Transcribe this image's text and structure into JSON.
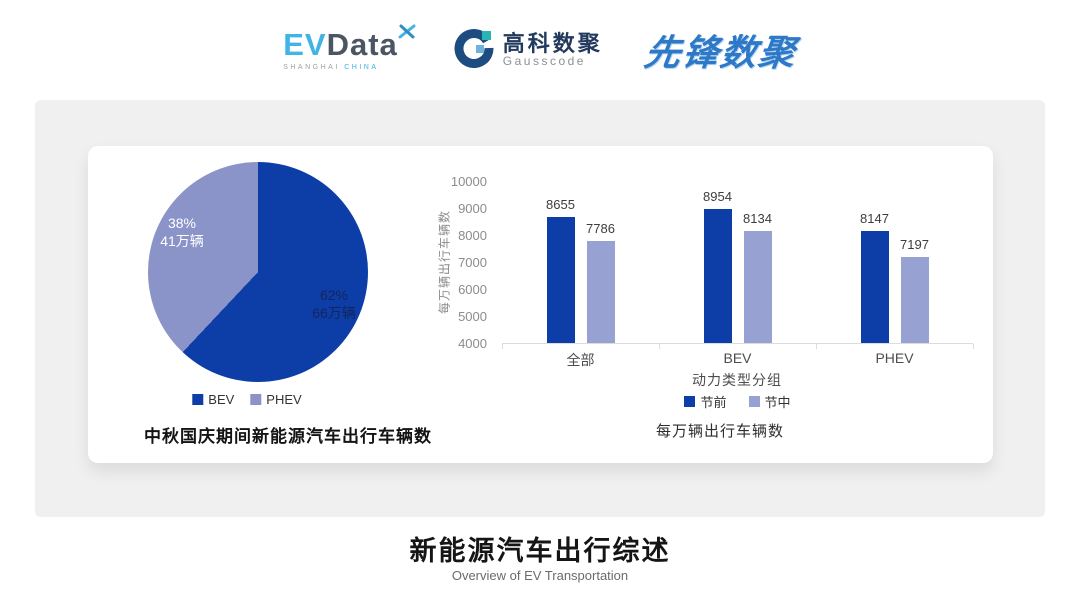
{
  "header": {
    "evdata": {
      "ev": "EV",
      "data": "Data",
      "sub_left": "SHANGHAI",
      "sub_right": "CHINA"
    },
    "gausscode": {
      "cn": "高科数聚",
      "en": "Gausscode"
    },
    "pioneer": {
      "text": "先锋数聚"
    },
    "colors": {
      "evdata_blue": "#41b4e6",
      "evdata_slate": "#4b5564",
      "gauss_navy": "#1d4d80",
      "gauss_teal": "#2ab5b5",
      "pioneer_blue": "#2d79c7"
    }
  },
  "chart_data": [
    {
      "type": "pie",
      "title": "中秋国庆期间新能源汽车出行车辆数",
      "slices": [
        {
          "name": "BEV",
          "percent": 62,
          "percent_label": "62%",
          "value_label": "66万辆",
          "color": "#0d3da6"
        },
        {
          "name": "PHEV",
          "percent": 38,
          "percent_label": "38%",
          "value_label": "41万辆",
          "color": "#8a94c9"
        }
      ],
      "legend_position": "bottom",
      "start_angle_deg": 90
    },
    {
      "type": "bar",
      "title": "每万辆出行车辆数",
      "categories": [
        "全部",
        "BEV",
        "PHEV"
      ],
      "series": [
        {
          "name": "节前",
          "values": [
            8655,
            8954,
            8147
          ],
          "color": "#0d3da6"
        },
        {
          "name": "节中",
          "values": [
            7786,
            8134,
            7197
          ],
          "color": "#98a2d2"
        }
      ],
      "xlabel": "动力类型分组",
      "ylabel": "每万辆出行车辆数",
      "ylim": [
        4000,
        10000
      ],
      "ytick_step": 1000,
      "grid": false,
      "legend_position": "bottom"
    }
  ],
  "footer": {
    "title": "新能源汽车出行综述",
    "subtitle": "Overview of EV Transportation"
  }
}
